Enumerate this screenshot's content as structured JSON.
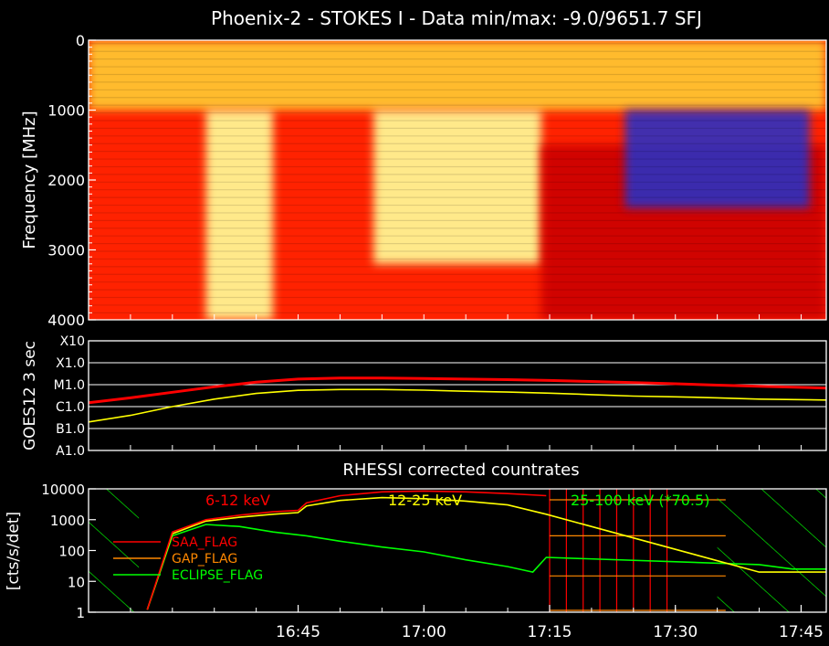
{
  "figure": {
    "title": "Phoenix-2 - STOKES I - Data min/max: -9.0/9651.7 SFJ"
  },
  "chart_data": [
    {
      "type": "heatmap",
      "title": "Phoenix-2 - STOKES I - Data min/max: -9.0/9651.7 SFJ",
      "ylabel": "Frequency [MHz]",
      "y_ticks": [
        "0",
        "1000",
        "2000",
        "3000",
        "4000"
      ],
      "y_tick_values": [
        0,
        1000,
        2000,
        3000,
        4000
      ],
      "ylim": [
        0,
        4000
      ],
      "y_inverted": true,
      "xlim_min": [
        20,
        108
      ],
      "data_min": -9.0,
      "data_max": 9651.7,
      "data_unit": "SFJ",
      "colormap": [
        "#000000",
        "#2233cc",
        "#cc0000",
        "#ff2200",
        "#ff8800",
        "#ffcc33",
        "#ffff99",
        "#ffffee"
      ],
      "features": [
        {
          "kind": "band",
          "t_min": [
            20,
            108
          ],
          "f_mhz": [
            0,
            1000
          ],
          "level": "strong"
        },
        {
          "kind": "band",
          "t_min": [
            34,
            42
          ],
          "f_mhz": [
            1000,
            4000
          ],
          "level": "very-strong"
        },
        {
          "kind": "band",
          "t_min": [
            54,
            74
          ],
          "f_mhz": [
            1000,
            3200
          ],
          "level": "very-strong"
        },
        {
          "kind": "band",
          "t_min": [
            74,
            108
          ],
          "f_mhz": [
            1500,
            4000
          ],
          "level": "medium"
        },
        {
          "kind": "band",
          "t_min": [
            84,
            106
          ],
          "f_mhz": [
            1000,
            2400
          ],
          "level": "weak"
        }
      ]
    },
    {
      "type": "line",
      "ylabel": "GOES12 3 sec",
      "y_ticks": [
        "A1.0",
        "B1.0",
        "C1.0",
        "M1.0",
        "X1.0",
        "X10"
      ],
      "y_tick_values": [
        1e-08,
        1e-07,
        1e-06,
        1e-05,
        0.0001,
        0.001
      ],
      "ylim": [
        1e-08,
        0.001
      ],
      "y_scale": "log",
      "xlim_min": [
        20,
        108
      ],
      "series": [
        {
          "color": "#ff0000",
          "x": [
            20,
            25,
            30,
            35,
            40,
            45,
            50,
            55,
            60,
            65,
            70,
            75,
            80,
            85,
            90,
            95,
            100,
            108
          ],
          "values": [
            1.5e-06,
            2.5e-06,
            4.5e-06,
            8e-06,
            1.3e-05,
            1.8e-05,
            2e-05,
            2e-05,
            1.9e-05,
            1.8e-05,
            1.7e-05,
            1.55e-05,
            1.4e-05,
            1.25e-05,
            1.1e-05,
            9.5e-06,
            8.5e-06,
            7e-06
          ]
        },
        {
          "color": "#ffff00",
          "x": [
            20,
            25,
            30,
            35,
            40,
            45,
            50,
            55,
            60,
            65,
            70,
            75,
            80,
            85,
            90,
            95,
            100,
            108
          ],
          "values": [
            2e-07,
            4e-07,
            1e-06,
            2.2e-06,
            4e-06,
            5.5e-06,
            6e-06,
            6e-06,
            5.6e-06,
            5e-06,
            4.6e-06,
            4.1e-06,
            3.5e-06,
            3e-06,
            2.8e-06,
            2.5e-06,
            2.2e-06,
            2e-06
          ]
        }
      ]
    },
    {
      "type": "line",
      "title": "RHESSI corrected countrates",
      "ylabel": "[cts/s/det]",
      "y_ticks": [
        "1",
        "10",
        "100",
        "1000",
        "10000"
      ],
      "y_tick_values": [
        1,
        10,
        100,
        1000,
        10000
      ],
      "ylim": [
        1,
        10000
      ],
      "y_scale": "log",
      "xlim_min": [
        20,
        108
      ],
      "x_ticks": [
        "16:45",
        "17:00",
        "17:15",
        "17:30",
        "17:45"
      ],
      "x_tick_values": [
        45,
        60,
        75,
        90,
        105
      ],
      "series": [
        {
          "name": "6-12 keV",
          "color": "#ff0000",
          "x": [
            27,
            30,
            34,
            38,
            42,
            45,
            46,
            50,
            55,
            60,
            65,
            70,
            74.6
          ],
          "values": [
            1.2,
            400,
            1000,
            1400,
            1800,
            2000,
            3500,
            6000,
            8000,
            8500,
            8000,
            7000,
            6000
          ]
        },
        {
          "name": "12-25 keV",
          "color": "#ffff00",
          "x": [
            27,
            30,
            34,
            38,
            42,
            45,
            46,
            50,
            55,
            60,
            65,
            70,
            74.6,
            100,
            108
          ],
          "values": [
            1.2,
            350,
            900,
            1200,
            1500,
            1700,
            2800,
            4200,
            5200,
            4800,
            4000,
            3000,
            1500,
            20,
            20
          ]
        },
        {
          "name": "25-100 keV (*70.5)",
          "color": "#00ff00",
          "x": [
            27,
            30,
            34,
            38,
            42,
            46,
            50,
            55,
            60,
            65,
            70,
            73,
            74.6,
            100,
            104,
            108
          ],
          "values": [
            1.2,
            300,
            700,
            600,
            400,
            300,
            200,
            130,
            90,
            50,
            30,
            20,
            60,
            35,
            25,
            25
          ]
        }
      ],
      "legend": [
        "SAA_FLAG",
        "GAP_FLAG",
        "ECLIPSE_FLAG"
      ],
      "legend_colors": [
        "#ff0000",
        "#ff8800",
        "#00ff00"
      ],
      "flags": [
        {
          "name": "SAA_FLAG",
          "color": "#ff0000",
          "x_ranges": [
            [
              75,
              90
            ]
          ]
        },
        {
          "name": "GAP_FLAG",
          "color": "#ff8800",
          "x_ranges": [
            [
              75,
              96
            ]
          ]
        },
        {
          "name": "ECLIPSE_FLAG",
          "color": "#00ff00",
          "x_ranges": [
            [
              20,
              26
            ],
            [
              95,
              108
            ]
          ]
        }
      ]
    }
  ]
}
